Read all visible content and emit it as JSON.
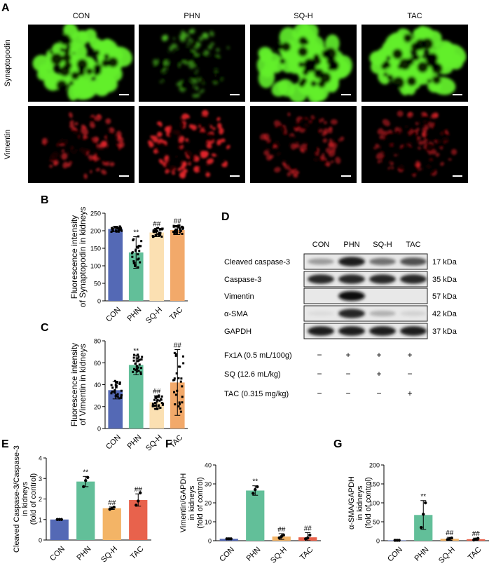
{
  "panel_letters": {
    "a": "A",
    "b": "B",
    "c": "C",
    "d": "D",
    "e": "E",
    "f": "F",
    "g": "G"
  },
  "micrographs": {
    "columns": [
      "CON",
      "PHN",
      "SQ-H",
      "TAC"
    ],
    "rows": [
      {
        "label": "Synaptopodin",
        "color": "#62ee2c",
        "intensity": [
          1.0,
          0.35,
          0.95,
          1.0
        ]
      },
      {
        "label": "Vimentin",
        "color": "#e0242a",
        "intensity": [
          0.55,
          0.95,
          0.4,
          0.4
        ]
      }
    ],
    "scale_bar": "20 μm"
  },
  "colors": {
    "CON": "#5469b5",
    "PHN": "#62bf99",
    "SQ-H": "#fbe0b2",
    "TAC": "#f2a96a",
    "SQ-H_dark": "#f3b466",
    "TAC_dark": "#e8624c"
  },
  "western_blot": {
    "lanes": [
      "CON",
      "PHN",
      "SQ-H",
      "TAC"
    ],
    "bands": [
      {
        "label": "Cleaved caspase-3",
        "size": "17 kDa",
        "intensity": [
          0.35,
          0.95,
          0.55,
          0.7
        ]
      },
      {
        "label": "Caspase-3",
        "size": "35 kDa",
        "intensity": [
          0.9,
          0.9,
          0.9,
          0.9
        ]
      },
      {
        "label": "Vimentin",
        "size": "57 kDa",
        "intensity": [
          0.0,
          1.0,
          0.0,
          0.0
        ]
      },
      {
        "label": "α-SMA",
        "size": "42 kDa",
        "intensity": [
          0.05,
          0.9,
          0.25,
          0.1
        ]
      },
      {
        "label": "GAPDH",
        "size": "37 kDa",
        "intensity": [
          0.95,
          0.95,
          0.95,
          0.95
        ]
      }
    ],
    "treatments": [
      {
        "label": "Fx1A (0.5 mL/100g)",
        "signs": [
          "−",
          "+",
          "+",
          "+"
        ]
      },
      {
        "label": "SQ (12.6 mL/kg)",
        "signs": [
          "−",
          "−",
          "+",
          "−"
        ]
      },
      {
        "label": "TAC (0.315 mg/kg)",
        "signs": [
          "−",
          "−",
          "−",
          "+"
        ]
      }
    ]
  },
  "chart_data": [
    {
      "id": "B",
      "type": "bar",
      "categories": [
        "CON",
        "PHN",
        "SQ-H",
        "TAC"
      ],
      "values": [
        205,
        138,
        195,
        202
      ],
      "errors": [
        8,
        45,
        12,
        13
      ],
      "ylabel": "Fluorescence intensity\nof Synaptopodin in kidneys",
      "ylim": [
        0,
        250
      ],
      "yticks": [
        0,
        50,
        100,
        150,
        200,
        250
      ],
      "annotations": [
        "",
        "**",
        "##",
        "##"
      ]
    },
    {
      "id": "C",
      "type": "bar",
      "categories": [
        "CON",
        "PHN",
        "SQ-H",
        "TAC"
      ],
      "values": [
        35,
        58,
        24,
        42
      ],
      "errors": [
        8,
        9,
        6,
        30
      ],
      "ylabel": "Fluorescence intensity\nof Vimentin in kidneys",
      "ylim": [
        0,
        80
      ],
      "yticks": [
        0,
        20,
        40,
        60,
        80
      ],
      "annotations": [
        "",
        "**",
        "##",
        "##"
      ]
    },
    {
      "id": "E",
      "type": "bar",
      "categories": [
        "CON",
        "PHN",
        "SQ-H",
        "TAC"
      ],
      "values": [
        1.0,
        2.85,
        1.55,
        1.95
      ],
      "errors": [
        0.02,
        0.25,
        0.06,
        0.3
      ],
      "points": [
        [
          1,
          1,
          1
        ],
        [
          2.6,
          2.9,
          3.05
        ],
        [
          1.5,
          1.55,
          1.6
        ],
        [
          1.7,
          1.9,
          2.3
        ]
      ],
      "ylabel": "Cleaved Caspase-3/Caspase-3\nin kidneys\n(fold of control)",
      "ylim": [
        0,
        4
      ],
      "yticks": [
        0,
        1,
        2,
        3,
        4
      ],
      "annotations": [
        "",
        "**",
        "##",
        "##"
      ]
    },
    {
      "id": "F",
      "type": "bar",
      "categories": [
        "CON",
        "PHN",
        "SQ-H",
        "TAC"
      ],
      "values": [
        1,
        26.5,
        2.2,
        1.8
      ],
      "errors": [
        0.3,
        2.5,
        1.5,
        2.5
      ],
      "points": [
        [
          1,
          1,
          1
        ],
        [
          25,
          27,
          28.5
        ],
        [
          1.5,
          2.2,
          3
        ],
        [
          1,
          1.5,
          3
        ]
      ],
      "ylabel": "Vimentin/GAPDH\nin kidneys\n(fold of control)",
      "ylim": [
        0,
        40
      ],
      "yticks": [
        0,
        10,
        20,
        30,
        40
      ],
      "annotations": [
        "",
        "**",
        "##",
        "##"
      ]
    },
    {
      "id": "G",
      "type": "bar",
      "categories": [
        "CON",
        "PHN",
        "SQ-H",
        "TAC"
      ],
      "values": [
        1,
        68,
        5,
        4
      ],
      "errors": [
        0.5,
        38,
        4,
        3
      ],
      "points": [
        [
          1,
          1,
          1
        ],
        [
          35,
          70,
          100
        ],
        [
          3,
          5,
          7
        ],
        [
          2,
          4,
          6
        ]
      ],
      "ylabel": "α-SMA/GAPDH\nin kidneys\n(fold of control)",
      "ylim": [
        0,
        200
      ],
      "yticks": [
        0,
        50,
        100,
        150,
        200
      ],
      "annotations": [
        "",
        "**",
        "##",
        "##"
      ]
    }
  ]
}
